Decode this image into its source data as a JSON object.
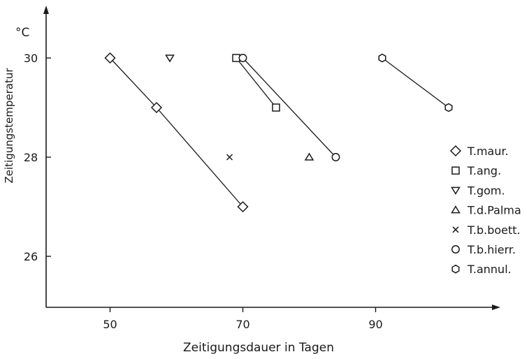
{
  "chart_data": {
    "type": "scatter",
    "xlabel": "Zeitigungsdauer in Tagen",
    "ylabel": "Zeitigungstemperatur",
    "yunit": "°C",
    "xlim": [
      40,
      100
    ],
    "ylim": [
      25,
      31
    ],
    "xticks": [
      50,
      70,
      90
    ],
    "yticks": [
      26,
      28,
      30
    ],
    "grid": false,
    "legend_position": "right",
    "series": [
      {
        "name": "T.maur.",
        "marker": "diamond",
        "connected": true,
        "points": [
          [
            50,
            30
          ],
          [
            57,
            29
          ],
          [
            70,
            27
          ]
        ]
      },
      {
        "name": "T.ang.",
        "marker": "square",
        "connected": true,
        "points": [
          [
            69,
            30
          ],
          [
            75,
            29
          ]
        ]
      },
      {
        "name": "T.gom.",
        "marker": "triangle-down",
        "connected": false,
        "points": [
          [
            59,
            30
          ]
        ]
      },
      {
        "name": "T.d.Palma",
        "marker": "triangle-up",
        "connected": false,
        "points": [
          [
            80,
            28
          ]
        ]
      },
      {
        "name": "T.b.boett.",
        "marker": "x",
        "connected": false,
        "points": [
          [
            68,
            28
          ]
        ]
      },
      {
        "name": "T.b.hierr.",
        "marker": "circle",
        "connected": true,
        "points": [
          [
            70,
            30
          ],
          [
            84,
            28
          ]
        ]
      },
      {
        "name": "T.annul.",
        "marker": "hexagon",
        "connected": true,
        "points": [
          [
            91,
            30
          ],
          [
            101,
            29
          ]
        ]
      }
    ]
  }
}
